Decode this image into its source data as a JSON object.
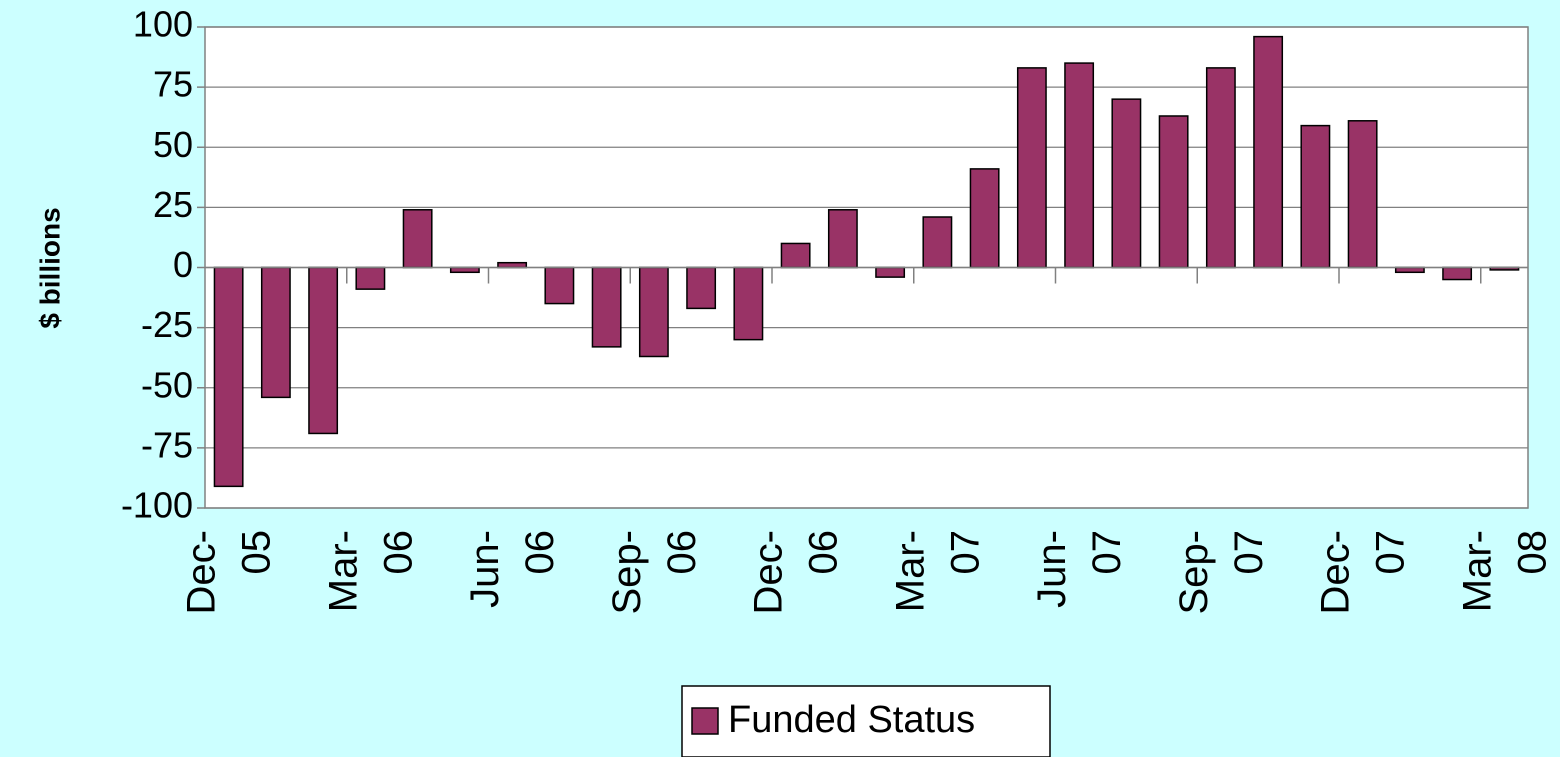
{
  "chart_data": {
    "type": "bar",
    "y_label": "$ billions",
    "categories": [
      "Dec-05",
      null,
      null,
      "Mar-06",
      null,
      null,
      "Jun-06",
      null,
      null,
      "Sep-06",
      null,
      null,
      "Dec-06",
      null,
      null,
      "Mar-07",
      null,
      null,
      "Jun-07",
      null,
      null,
      "Sep-07",
      null,
      null,
      "Dec-07",
      null,
      null,
      "Mar-08"
    ],
    "series": [
      {
        "name": "Funded Status",
        "color": "#993366",
        "values": [
          -91,
          -54,
          -69,
          -9,
          24,
          -2,
          2,
          -15,
          -33,
          -37,
          -17,
          -30,
          10,
          24,
          -4,
          21,
          41,
          83,
          85,
          70,
          63,
          83,
          96,
          59,
          61,
          -2,
          -5,
          -1
        ]
      }
    ],
    "ylim": [
      -100,
      100
    ],
    "yticks": [
      -100,
      -75,
      -50,
      -25,
      0,
      25,
      50,
      75,
      100
    ],
    "grid": true,
    "legend": "bottom"
  }
}
